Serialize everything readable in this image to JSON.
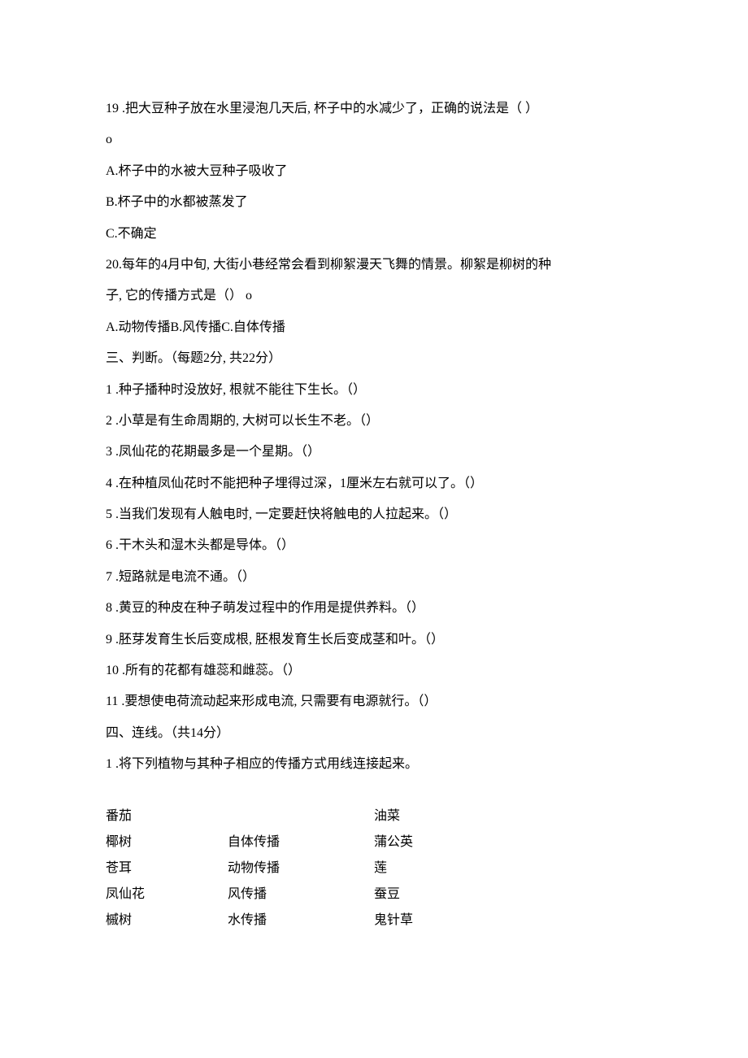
{
  "q19": {
    "stem_line1": "19 .把大豆种子放在水里浸泡几天后, 杯子中的水减少了，正确的说法是（   ）",
    "stem_line2": "o",
    "opt_a": "A.杯子中的水被大豆种子吸收了",
    "opt_b": "B.杯子中的水都被蒸发了",
    "opt_c": "C.不确定"
  },
  "q20": {
    "stem_line1": "20.每年的4月中旬, 大街小巷经常会看到柳絮漫天飞舞的情景。柳絮是柳树的种",
    "stem_line2": "子, 它的传播方式是（） o",
    "opts": "A.动物传播B.风传播C.自体传播"
  },
  "section3": {
    "heading": "三、判断。（每题2分, 共22分）",
    "items": [
      "1 .种子播种时没放好, 根就不能往下生长。（）",
      "2 .小草是有生命周期的, 大树可以长生不老。（）",
      "3 .凤仙花的花期最多是一个星期。（）",
      "4 .在种植凤仙花时不能把种子埋得过深，1厘米左右就可以了。（）",
      "5 .当我们发现有人触电时, 一定要赶快将触电的人拉起来。（）",
      "6 .干木头和湿木头都是导体。（）",
      "7 .短路就是电流不通。（）",
      "8 .黄豆的种皮在种子萌发过程中的作用是提供养料。（）",
      "9 .胚芽发育生长后变成根, 胚根发育生长后变成茎和叶。（）",
      "10 .所有的花都有雄蕊和雌蕊。（）",
      "11 .要想使电荷流动起来形成电流, 只需要有电源就行。（）"
    ]
  },
  "section4": {
    "heading": "四、连线。（共14分）",
    "q1": "1 .将下列植物与其种子相应的传播方式用线连接起来。",
    "rows": [
      {
        "left": "番茄",
        "mid": "",
        "right": "油菜"
      },
      {
        "left": "椰树",
        "mid": "自体传播",
        "right": "蒲公英"
      },
      {
        "left": "苍耳",
        "mid": "动物传播",
        "right": "莲"
      },
      {
        "left": "凤仙花",
        "mid": "风传播",
        "right": "蚕豆"
      },
      {
        "left": "槭树",
        "mid": "水传播",
        "right": "鬼针草"
      }
    ]
  }
}
